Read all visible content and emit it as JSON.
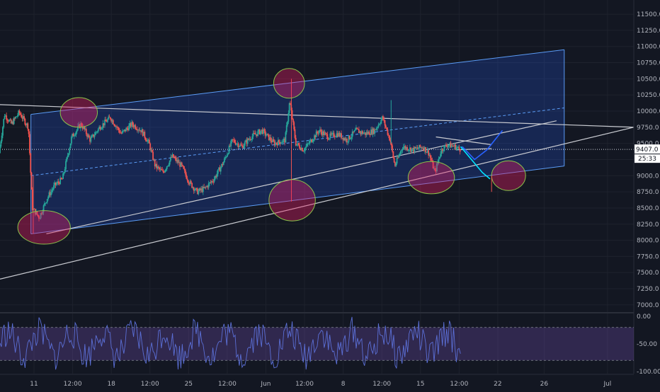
{
  "chart_data": {
    "type": "candlestick",
    "title": "",
    "price_axis": {
      "range": [
        6900,
        11720
      ],
      "ticks": [
        7000,
        7250,
        7500,
        7750,
        8000,
        8250,
        8500,
        8750,
        9000,
        9250,
        9500,
        9750,
        10000,
        10250,
        10500,
        10750,
        11000,
        11250,
        11500
      ],
      "tick_labels": [
        "7000.0",
        "7250.0",
        "7500.0",
        "7750.0",
        "8000.0",
        "8250.0",
        "8500.0",
        "8750.0",
        "9000.0",
        "9250.0",
        "9500.0",
        "9750.0",
        "10000.0",
        "10250.0",
        "10500.0",
        "10750.0",
        "11000.0",
        "11250.0",
        "11500.0"
      ],
      "current_price": 9407.0,
      "current_price_label": "9407.0",
      "countdown_label": "25:33"
    },
    "time_axis": {
      "labels": [
        {
          "t": 2.2,
          "text": "11"
        },
        {
          "t": 4.7,
          "text": "12:00"
        },
        {
          "t": 7.2,
          "text": "18"
        },
        {
          "t": 9.7,
          "text": "12:00"
        },
        {
          "t": 12.2,
          "text": "25"
        },
        {
          "t": 14.7,
          "text": "12:00"
        },
        {
          "t": 17.2,
          "text": "Jun"
        },
        {
          "t": 19.7,
          "text": "12:00"
        },
        {
          "t": 22.2,
          "text": "8"
        },
        {
          "t": 24.7,
          "text": "12:00"
        },
        {
          "t": 27.2,
          "text": "15"
        },
        {
          "t": 29.7,
          "text": "12:00"
        },
        {
          "t": 32.2,
          "text": "22"
        },
        {
          "t": 35.2,
          "text": "26"
        },
        {
          "t": 39.3,
          "text": "Jul"
        }
      ]
    },
    "price_series": [
      [
        0,
        9350
      ],
      [
        0.35,
        9950
      ],
      [
        0.8,
        9800
      ],
      [
        1.3,
        9980
      ],
      [
        1.9,
        9750
      ],
      [
        2.15,
        8500
      ],
      [
        2.6,
        8350
      ],
      [
        3.1,
        8650
      ],
      [
        3.6,
        8850
      ],
      [
        4.1,
        8950
      ],
      [
        4.7,
        9600
      ],
      [
        5.3,
        9800
      ],
      [
        5.9,
        9550
      ],
      [
        6.5,
        9750
      ],
      [
        7.2,
        9900
      ],
      [
        7.9,
        9650
      ],
      [
        8.6,
        9800
      ],
      [
        9.2,
        9700
      ],
      [
        9.7,
        9500
      ],
      [
        10.1,
        9150
      ],
      [
        10.6,
        9050
      ],
      [
        11.2,
        9300
      ],
      [
        11.8,
        9150
      ],
      [
        12.3,
        8900
      ],
      [
        12.8,
        8750
      ],
      [
        13.3,
        8800
      ],
      [
        13.9,
        8950
      ],
      [
        14.5,
        9200
      ],
      [
        15.1,
        9550
      ],
      [
        15.7,
        9450
      ],
      [
        16.3,
        9600
      ],
      [
        17.0,
        9700
      ],
      [
        17.8,
        9500
      ],
      [
        18.5,
        9550
      ],
      [
        18.8,
        10150
      ],
      [
        19.2,
        9500
      ],
      [
        19.7,
        9400
      ],
      [
        20.2,
        9550
      ],
      [
        20.7,
        9700
      ],
      [
        21.3,
        9600
      ],
      [
        21.9,
        9650
      ],
      [
        22.5,
        9550
      ],
      [
        23.1,
        9700
      ],
      [
        23.7,
        9650
      ],
      [
        24.3,
        9700
      ],
      [
        24.8,
        9900
      ],
      [
        25.3,
        9550
      ],
      [
        25.6,
        9150
      ],
      [
        26.1,
        9450
      ],
      [
        26.8,
        9400
      ],
      [
        27.4,
        9450
      ],
      [
        27.8,
        9350
      ],
      [
        28.2,
        9050
      ],
      [
        28.6,
        9400
      ],
      [
        29.0,
        9480
      ],
      [
        29.5,
        9450
      ],
      [
        29.8,
        9407
      ]
    ],
    "drawings": {
      "channel_top": [
        [
          2.0,
          9950
        ],
        [
          36.5,
          10950
        ]
      ],
      "channel_bottom": [
        [
          2.0,
          8100
        ],
        [
          36.5,
          9150
        ]
      ],
      "channel_mid": [
        [
          2.0,
          9000
        ],
        [
          36.5,
          10050
        ]
      ],
      "descending_trendline": [
        [
          0,
          10100
        ],
        [
          41,
          9750
        ]
      ],
      "support_trendline": [
        [
          0,
          7400
        ],
        [
          41,
          9750
        ]
      ],
      "channel_support_line": [
        [
          3.0,
          8100
        ],
        [
          36.0,
          9850
        ]
      ],
      "wedge_upper": [
        [
          28.2,
          9600
        ],
        [
          31.8,
          9480
        ]
      ],
      "wedge_lower": [
        [
          29.5,
          9400
        ],
        [
          31.8,
          9420
        ]
      ],
      "projection_cyan": [
        [
          29.8,
          9450
        ],
        [
          30.5,
          9250
        ],
        [
          31.2,
          9050
        ],
        [
          31.7,
          8950
        ]
      ],
      "projection_blue": [
        [
          29.9,
          9450
        ],
        [
          30.7,
          9250
        ],
        [
          31.5,
          9400
        ],
        [
          32.5,
          9700
        ]
      ],
      "marker_red": [
        [
          31.8,
          9000
        ],
        [
          31.8,
          8750
        ]
      ],
      "ellipses": [
        {
          "t": 2.85,
          "price": 8200,
          "rt": 1.7,
          "rp": 260,
          "label": "low-may-11"
        },
        {
          "t": 5.1,
          "price": 9980,
          "rt": 1.2,
          "rp": 230,
          "label": "high-may-12"
        },
        {
          "t": 18.7,
          "price": 10430,
          "rt": 1.0,
          "rp": 230,
          "label": "high-jun-2"
        },
        {
          "t": 18.9,
          "price": 8620,
          "rt": 1.5,
          "rp": 320,
          "label": "low-jun-2"
        },
        {
          "t": 27.9,
          "price": 8970,
          "rt": 1.5,
          "rp": 250,
          "label": "low-jun-15"
        },
        {
          "t": 32.9,
          "price": 9000,
          "rt": 1.1,
          "rp": 230,
          "label": "target-zone"
        }
      ]
    },
    "rsi": {
      "range": [
        -100,
        0
      ],
      "ticks": [
        0,
        -50,
        -100
      ],
      "tick_labels": [
        "0.00",
        "-50.00",
        "-100.00"
      ],
      "band": [
        -20,
        -80
      ]
    }
  }
}
